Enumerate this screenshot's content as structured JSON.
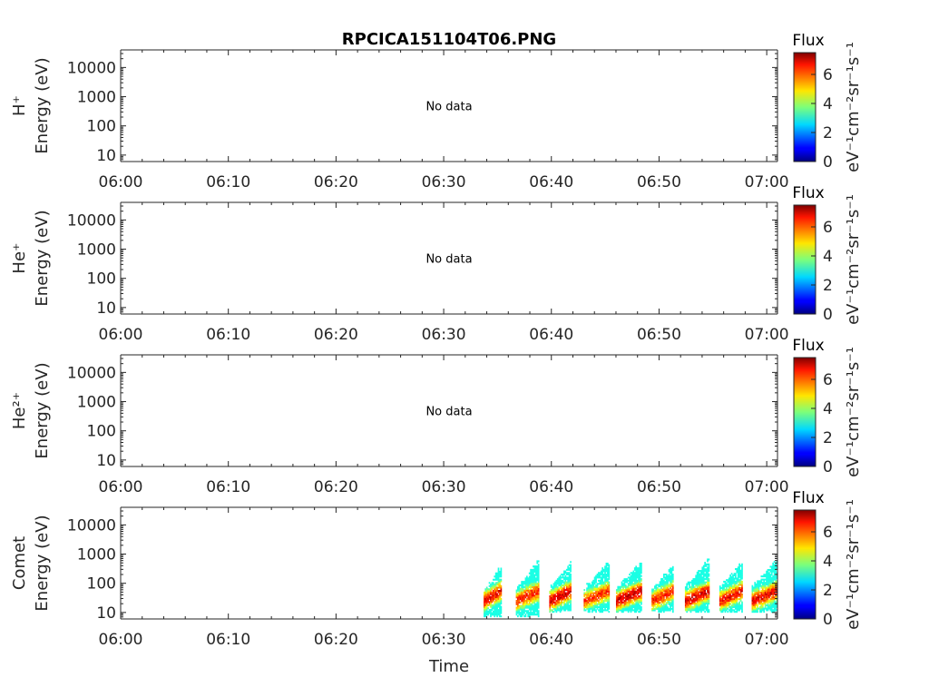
{
  "title": "RPCICA151104T06.PNG",
  "xlabel": "Time",
  "colorbar": {
    "title": "Flux",
    "label": "eV⁻¹cm⁻²sr⁻¹s⁻¹",
    "ticks": [
      "0",
      "2",
      "4",
      "6"
    ],
    "range": [
      0,
      7.5
    ],
    "colormap": "jet"
  },
  "chart_data": [
    {
      "type": "heatmap",
      "species": "H⁺",
      "ylabel": "Energy (eV)",
      "yscale": "log",
      "ylim": [
        6,
        40000
      ],
      "yticks": [
        "10",
        "100",
        "1000",
        "10000"
      ],
      "xticks": [
        "06:00",
        "06:10",
        "06:20",
        "06:30",
        "06:40",
        "06:50",
        "07:00"
      ],
      "xlim_minutes": [
        0,
        61
      ],
      "annotation": "No data",
      "bursts": []
    },
    {
      "type": "heatmap",
      "species": "He⁺",
      "ylabel": "Energy (eV)",
      "yscale": "log",
      "ylim": [
        6,
        40000
      ],
      "yticks": [
        "10",
        "100",
        "1000",
        "10000"
      ],
      "xticks": [
        "06:00",
        "06:10",
        "06:20",
        "06:30",
        "06:40",
        "06:50",
        "07:00"
      ],
      "xlim_minutes": [
        0,
        61
      ],
      "annotation": "No data",
      "bursts": []
    },
    {
      "type": "heatmap",
      "species": "He²⁺",
      "ylabel": "Energy (eV)",
      "yscale": "log",
      "ylim": [
        6,
        40000
      ],
      "yticks": [
        "10",
        "100",
        "1000",
        "10000"
      ],
      "xticks": [
        "06:00",
        "06:10",
        "06:20",
        "06:30",
        "06:40",
        "06:50",
        "07:00"
      ],
      "xlim_minutes": [
        0,
        61
      ],
      "annotation": "No data",
      "bursts": []
    },
    {
      "type": "heatmap",
      "species": "Comet",
      "ylabel": "Energy (eV)",
      "yscale": "log",
      "ylim": [
        6,
        40000
      ],
      "yticks": [
        "10",
        "100",
        "1000",
        "10000"
      ],
      "xticks": [
        "06:00",
        "06:10",
        "06:20",
        "06:30",
        "06:40",
        "06:50",
        "07:00"
      ],
      "xlim_minutes": [
        0,
        61
      ],
      "annotation": "",
      "bursts": [
        {
          "t_start": 33.7,
          "t_end": 35.3,
          "e_low": 7,
          "e_high": 500,
          "peak_flux": 6.3
        },
        {
          "t_start": 36.7,
          "t_end": 38.8,
          "e_low": 7,
          "e_high": 700,
          "peak_flux": 6.0
        },
        {
          "t_start": 39.8,
          "t_end": 41.8,
          "e_low": 10,
          "e_high": 650,
          "peak_flux": 6.5
        },
        {
          "t_start": 43.0,
          "t_end": 45.3,
          "e_low": 10,
          "e_high": 650,
          "peak_flux": 5.8
        },
        {
          "t_start": 46.0,
          "t_end": 48.3,
          "e_low": 10,
          "e_high": 650,
          "peak_flux": 6.6
        },
        {
          "t_start": 49.3,
          "t_end": 51.3,
          "e_low": 10,
          "e_high": 550,
          "peak_flux": 6.0
        },
        {
          "t_start": 52.4,
          "t_end": 54.6,
          "e_low": 10,
          "e_high": 800,
          "peak_flux": 6.5
        },
        {
          "t_start": 55.6,
          "t_end": 57.7,
          "e_low": 10,
          "e_high": 700,
          "peak_flux": 6.2
        },
        {
          "t_start": 58.6,
          "t_end": 60.9,
          "e_low": 10,
          "e_high": 750,
          "peak_flux": 6.3
        }
      ]
    }
  ]
}
